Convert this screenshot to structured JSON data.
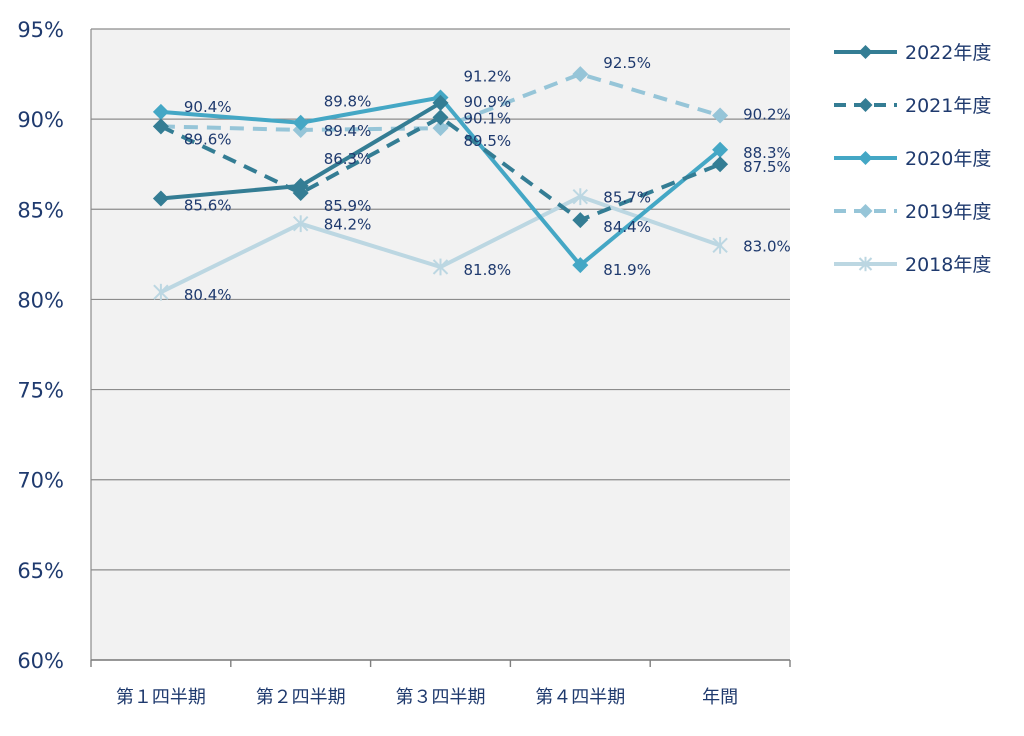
{
  "chart_data": {
    "type": "line",
    "categories": [
      "第１四半期",
      "第２四半期",
      "第３四半期",
      "第４四半期",
      "年間"
    ],
    "ylim": [
      60,
      95
    ],
    "y_ticks": [
      "60%",
      "65%",
      "70%",
      "75%",
      "80%",
      "85%",
      "90%",
      "95%"
    ],
    "grid": true,
    "legend_position": "right",
    "series": [
      {
        "name": "2022年度",
        "values": [
          85.6,
          86.3,
          90.9,
          null,
          null
        ],
        "labels": [
          "85.6%",
          "86.3%",
          "90.9%",
          "",
          ""
        ],
        "color": "#347d94",
        "dash": "solid",
        "marker": "diamond"
      },
      {
        "name": "2021年度",
        "values": [
          89.6,
          85.9,
          90.1,
          84.4,
          87.5
        ],
        "labels": [
          "89.6%",
          "85.9%",
          "90.1%",
          "84.4%",
          "87.5%"
        ],
        "color": "#347d94",
        "dash": "dashed",
        "marker": "diamond"
      },
      {
        "name": "2020年度",
        "values": [
          90.4,
          89.8,
          91.2,
          81.9,
          88.3
        ],
        "labels": [
          "90.4%",
          "89.8%",
          "91.2%",
          "81.9%",
          "88.3%"
        ],
        "color": "#44a7c5",
        "dash": "solid",
        "marker": "diamond"
      },
      {
        "name": "2019年度",
        "values": [
          89.6,
          89.4,
          89.5,
          92.5,
          90.2
        ],
        "labels": [
          "",
          "89.4%",
          "89.5%",
          "92.5%",
          "90.2%"
        ],
        "color": "#96c5d8",
        "dash": "dashed",
        "marker": "diamond"
      },
      {
        "name": "2018年度",
        "values": [
          80.4,
          84.2,
          81.8,
          85.7,
          83.0
        ],
        "labels": [
          "80.4%",
          "84.2%",
          "81.8%",
          "85.7%",
          "83.0%"
        ],
        "color": "#bcd7e2",
        "dash": "solid",
        "marker": "star"
      }
    ]
  }
}
